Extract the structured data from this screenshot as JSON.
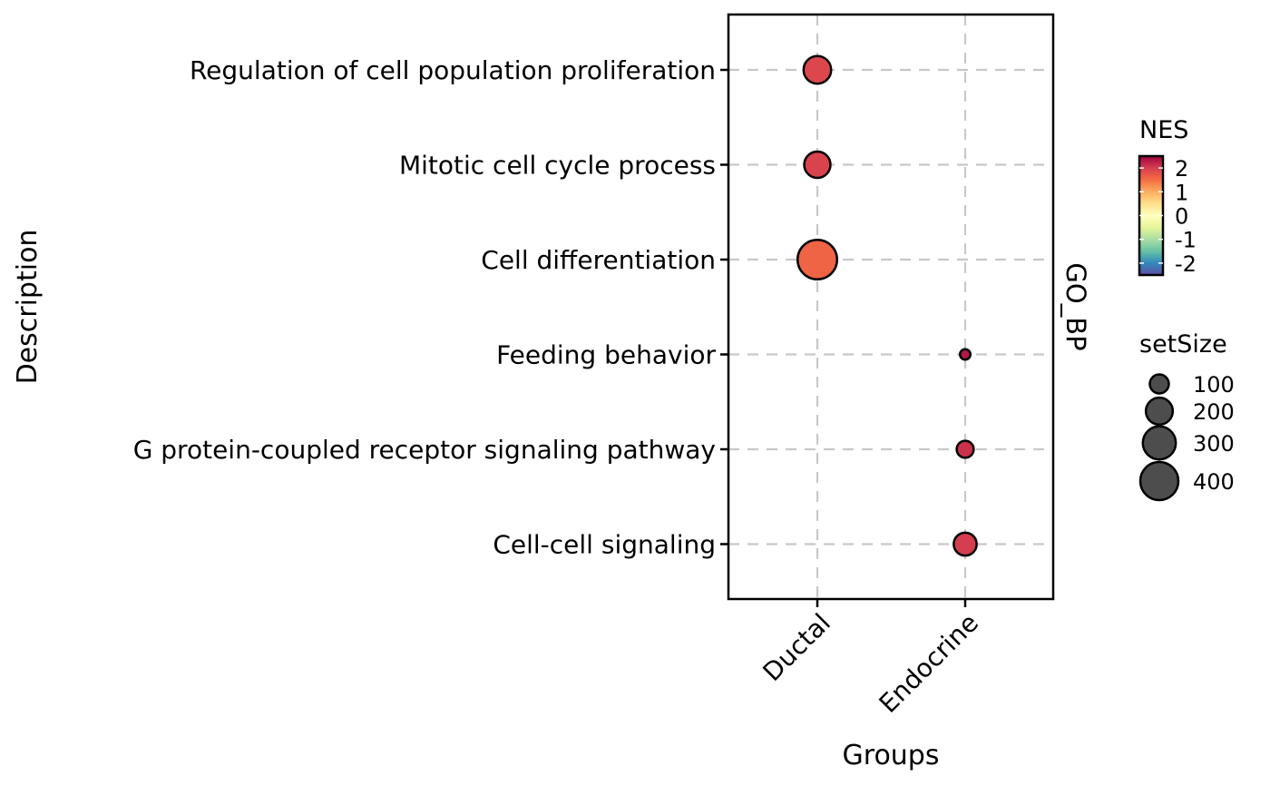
{
  "chart_data": {
    "type": "scatter",
    "xlabel": "Groups",
    "ylabel": "Description",
    "facet_label": "GO_BP",
    "x_categories": [
      "Ductal",
      "Endocrine"
    ],
    "y_categories": [
      "Regulation of cell population proliferation",
      "Mitotic cell cycle process",
      "Cell differentiation",
      "Feeding behavior",
      "G protein-coupled receptor signaling pathway",
      "Cell-cell signaling"
    ],
    "points": [
      {
        "group": "Ductal",
        "description": "Regulation of cell population proliferation",
        "NES": 1.9,
        "setSize": 210
      },
      {
        "group": "Ductal",
        "description": "Mitotic cell cycle process",
        "NES": 1.95,
        "setSize": 190
      },
      {
        "group": "Ductal",
        "description": "Cell differentiation",
        "NES": 1.6,
        "setSize": 430
      },
      {
        "group": "Endocrine",
        "description": "Feeding behavior",
        "NES": 2.3,
        "setSize": 30
      },
      {
        "group": "Endocrine",
        "description": "G protein-coupled receptor signaling pathway",
        "NES": 2.1,
        "setSize": 80
      },
      {
        "group": "Endocrine",
        "description": "Cell-cell signaling",
        "NES": 2.0,
        "setSize": 145
      }
    ],
    "legend_color": {
      "title": "NES",
      "ticks": [
        "2",
        "1",
        "0",
        "-1",
        "-2"
      ],
      "range": [
        -2.5,
        2.5
      ],
      "palette": [
        "#5E4FA2",
        "#3288BD",
        "#66C2A5",
        "#ABDDA4",
        "#E6F598",
        "#FFFFBF",
        "#FEE08B",
        "#FDAE61",
        "#F46D43",
        "#D53E4F",
        "#9E0142"
      ]
    },
    "legend_size": {
      "title": "setSize",
      "values": [
        100,
        200,
        300,
        400
      ],
      "labels": [
        "100",
        "200",
        "300",
        "400"
      ]
    },
    "grid": true,
    "legend_position": "right"
  }
}
